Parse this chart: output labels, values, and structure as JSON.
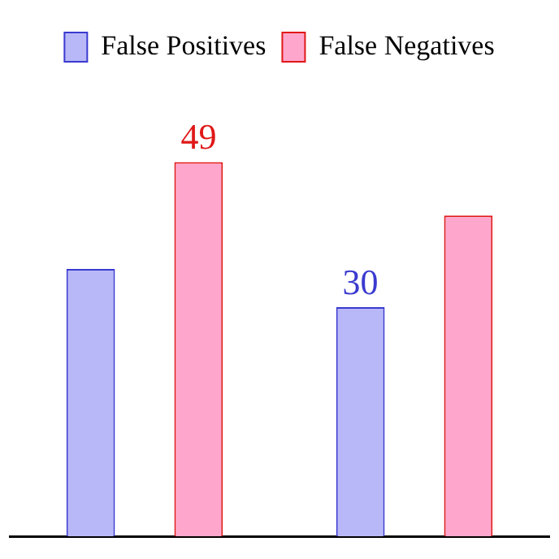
{
  "chart_data": {
    "type": "bar",
    "categories": [
      null,
      null
    ],
    "series": [
      {
        "name": "False Positives",
        "color": "#b8b8f8",
        "values": [
          35,
          30
        ],
        "value_labels": [
          null,
          "30"
        ]
      },
      {
        "name": "False Negatives",
        "color": "#ffa6cc",
        "values": [
          49,
          42
        ],
        "value_labels": [
          "49",
          null
        ]
      }
    ],
    "legend": "top"
  }
}
